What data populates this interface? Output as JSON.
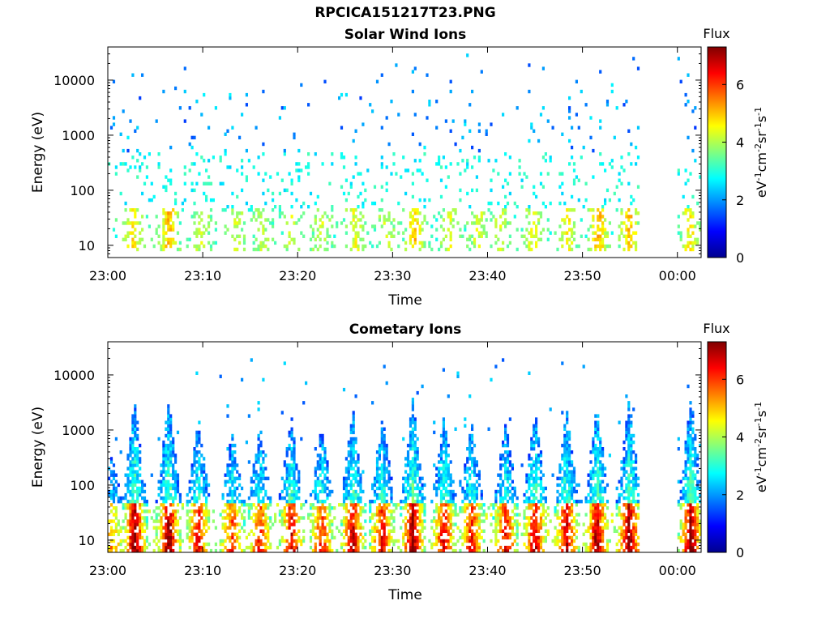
{
  "figure": {
    "title": "RPCICA151217T23.PNG"
  },
  "colormap": [
    "#00008f",
    "#0000ff",
    "#0080ff",
    "#00ffff",
    "#80ff80",
    "#ffff00",
    "#ff8000",
    "#ff0000",
    "#800000"
  ],
  "chart_data": [
    {
      "type": "heatmap",
      "title": "Solar Wind Ions",
      "xlabel": "Time",
      "ylabel": "Energy (eV)",
      "y_scale": "log",
      "ylim": [
        6,
        40000
      ],
      "xlim": [
        "23:00",
        "00:02:30"
      ],
      "x_ticks": [
        "23:00",
        "23:10",
        "23:20",
        "23:30",
        "23:40",
        "23:50",
        "00:00"
      ],
      "y_ticks": [
        10,
        100,
        1000,
        10000
      ],
      "y_tick_labels": [
        "10",
        "100",
        "1000",
        "10000"
      ],
      "colorbar": {
        "title": "Flux",
        "label": "eV-1cm-2sr-1s-1",
        "range": [
          0,
          7.3
        ],
        "ticks": [
          0,
          2,
          4,
          6
        ],
        "tick_labels": [
          "0",
          "2",
          "4",
          "6"
        ]
      },
      "data_gap": [
        "23:56",
        "00:00"
      ],
      "pulses_min": [
        2.5,
        6.3,
        9.8,
        13.4,
        16.2,
        19.3,
        22.4,
        25.9,
        29.2,
        32.2,
        35.9,
        38.9,
        41.3,
        44.7,
        48.3,
        51.6,
        54.8,
        61.2
      ],
      "pulse_strength": [
        0.55,
        0.7,
        0.4,
        0.35,
        0.3,
        0.35,
        0.4,
        0.45,
        0.35,
        0.65,
        0.4,
        0.4,
        0.4,
        0.45,
        0.55,
        0.7,
        0.7,
        0.55
      ],
      "low_energy_band_eV": [
        8,
        45
      ],
      "scatter_energy_band_eV": [
        100,
        30000
      ],
      "typical_flux": 2.5
    },
    {
      "type": "heatmap",
      "title": "Cometary Ions",
      "xlabel": "Time",
      "ylabel": "Energy (eV)",
      "y_scale": "log",
      "ylim": [
        6,
        40000
      ],
      "xlim": [
        "23:00",
        "00:02:30"
      ],
      "x_ticks": [
        "23:00",
        "23:10",
        "23:20",
        "23:30",
        "23:40",
        "23:50",
        "00:00"
      ],
      "y_ticks": [
        10,
        100,
        1000,
        10000
      ],
      "y_tick_labels": [
        "10",
        "100",
        "1000",
        "10000"
      ],
      "colorbar": {
        "title": "Flux",
        "label": "eV-1cm-2sr-1s-1",
        "range": [
          0,
          7.3
        ],
        "ticks": [
          0,
          2,
          4,
          6
        ],
        "tick_labels": [
          "0",
          "2",
          "4",
          "6"
        ]
      },
      "data_gap": [
        "23:56",
        "00:00"
      ],
      "pulses_min": [
        0.3,
        2.7,
        6.3,
        9.4,
        13.0,
        15.9,
        19.2,
        22.4,
        25.7,
        28.8,
        32.0,
        35.3,
        38.2,
        41.8,
        44.9,
        48.2,
        51.4,
        54.8,
        61.3
      ],
      "pulse_strength": [
        0.45,
        0.95,
        0.95,
        0.75,
        0.65,
        0.7,
        0.8,
        0.7,
        0.85,
        0.8,
        0.95,
        0.8,
        0.75,
        0.75,
        0.85,
        0.85,
        0.9,
        0.95,
        0.95
      ],
      "low_energy_band_eV": [
        6,
        45
      ],
      "high_energy_reach_eV": 20000,
      "typical_flux": 4.5
    }
  ]
}
